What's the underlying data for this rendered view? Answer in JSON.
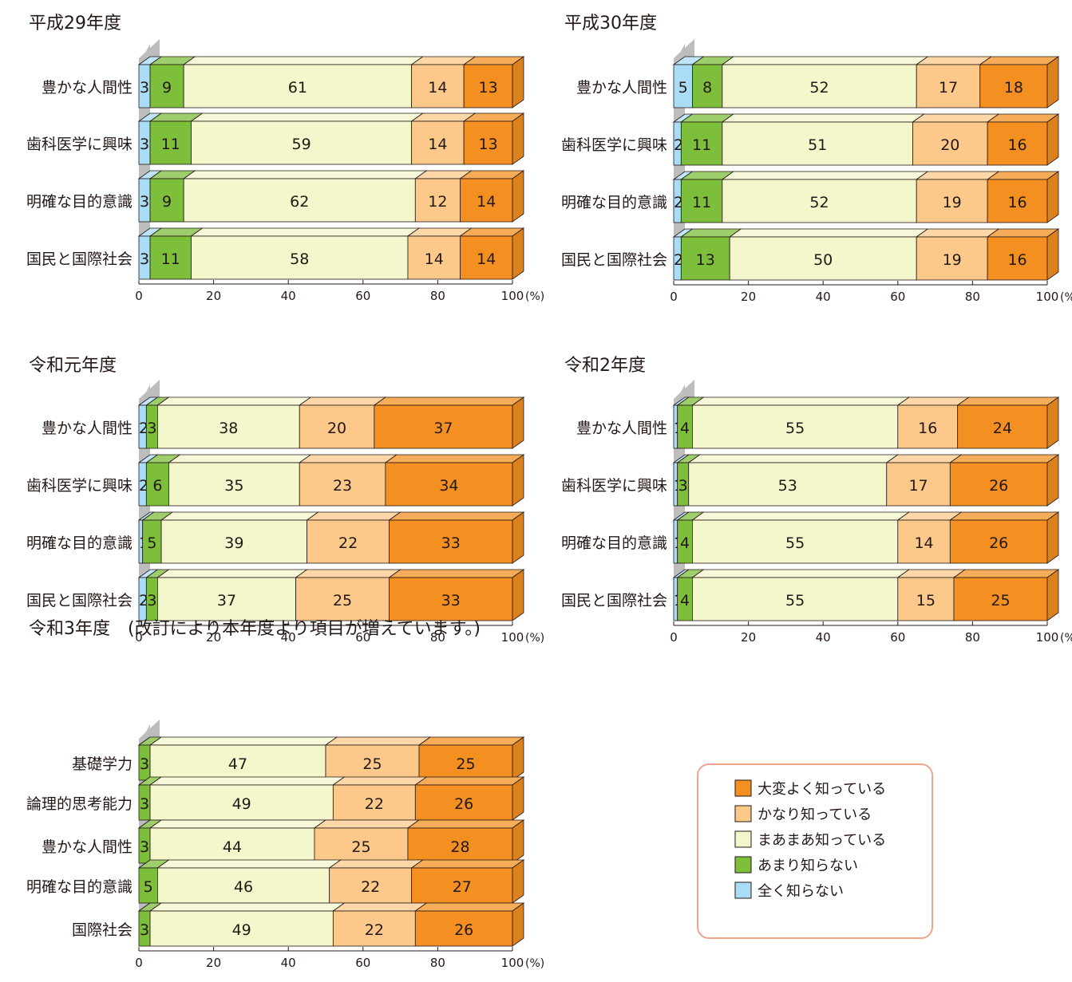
{
  "chart_data": [
    {
      "type": "bar",
      "title": "平成29年度",
      "categories": [
        "豊かな人間性",
        "歯科医学に興味",
        "明確な目的意識",
        "国民と国際社会"
      ],
      "series": [
        {
          "name": "全く知らない",
          "values": [
            3,
            3,
            3,
            3
          ]
        },
        {
          "name": "あまり知らない",
          "values": [
            9,
            11,
            9,
            11
          ]
        },
        {
          "name": "まあまあ知っている",
          "values": [
            61,
            59,
            62,
            58
          ]
        },
        {
          "name": "かなり知っている",
          "values": [
            14,
            14,
            12,
            14
          ]
        },
        {
          "name": "大変よく知っている",
          "values": [
            13,
            13,
            14,
            14
          ]
        }
      ],
      "x_ticks": [
        "0",
        "20",
        "40",
        "60",
        "80",
        "100"
      ],
      "unit": "(%)",
      "xlim": [
        0,
        100
      ]
    },
    {
      "type": "bar",
      "title": "平成30年度",
      "categories": [
        "豊かな人間性",
        "歯科医学に興味",
        "明確な目的意識",
        "国民と国際社会"
      ],
      "series": [
        {
          "name": "全く知らない",
          "values": [
            5,
            2,
            2,
            2
          ]
        },
        {
          "name": "あまり知らない",
          "values": [
            8,
            11,
            11,
            13
          ]
        },
        {
          "name": "まあまあ知っている",
          "values": [
            52,
            51,
            52,
            50
          ]
        },
        {
          "name": "かなり知っている",
          "values": [
            17,
            20,
            19,
            19
          ]
        },
        {
          "name": "大変よく知っている",
          "values": [
            18,
            16,
            16,
            16
          ]
        }
      ],
      "x_ticks": [
        "0",
        "20",
        "40",
        "60",
        "80",
        "100"
      ],
      "unit": "(%)",
      "xlim": [
        0,
        100
      ]
    },
    {
      "type": "bar",
      "title": "令和元年度",
      "categories": [
        "豊かな人間性",
        "歯科医学に興味",
        "明確な目的意識",
        "国民と国際社会"
      ],
      "series": [
        {
          "name": "全く知らない",
          "values": [
            2,
            2,
            1,
            2
          ]
        },
        {
          "name": "あまり知らない",
          "values": [
            3,
            6,
            5,
            3
          ]
        },
        {
          "name": "まあまあ知っている",
          "values": [
            38,
            35,
            39,
            37
          ]
        },
        {
          "name": "かなり知っている",
          "values": [
            20,
            23,
            22,
            25
          ]
        },
        {
          "name": "大変よく知っている",
          "values": [
            37,
            34,
            33,
            33
          ]
        }
      ],
      "x_ticks": [
        "0",
        "20",
        "40",
        "60",
        "80",
        "100"
      ],
      "unit": "(%)",
      "xlim": [
        0,
        100
      ]
    },
    {
      "type": "bar",
      "title": "令和2年度",
      "categories": [
        "豊かな人間性",
        "歯科医学に興味",
        "明確な目的意識",
        "国民と国際社会"
      ],
      "series": [
        {
          "name": "全く知らない",
          "values": [
            1,
            1,
            1,
            1
          ]
        },
        {
          "name": "あまり知らない",
          "values": [
            4,
            3,
            4,
            4
          ]
        },
        {
          "name": "まあまあ知っている",
          "values": [
            55,
            53,
            55,
            55
          ]
        },
        {
          "name": "かなり知っている",
          "values": [
            16,
            17,
            14,
            15
          ]
        },
        {
          "name": "大変よく知っている",
          "values": [
            24,
            26,
            26,
            25
          ]
        }
      ],
      "x_ticks": [
        "0",
        "20",
        "40",
        "60",
        "80",
        "100"
      ],
      "unit": "(%)",
      "xlim": [
        0,
        100
      ]
    },
    {
      "type": "bar",
      "title": "令和3年度　(改訂により本年度より項目が増えています。)",
      "categories": [
        "基礎学力",
        "論理的思考能力",
        "豊かな人間性",
        "明確な目的意識",
        "国際社会"
      ],
      "series": [
        {
          "name": "全く知らない",
          "values": [
            0,
            0,
            0,
            0,
            0
          ]
        },
        {
          "name": "あまり知らない",
          "values": [
            3,
            3,
            3,
            5,
            3
          ]
        },
        {
          "name": "まあまあ知っている",
          "values": [
            47,
            49,
            44,
            46,
            49
          ]
        },
        {
          "name": "かなり知っている",
          "values": [
            25,
            22,
            25,
            22,
            22
          ]
        },
        {
          "name": "大変よく知っている",
          "values": [
            25,
            26,
            28,
            27,
            26
          ]
        }
      ],
      "x_ticks": [
        "0",
        "20",
        "40",
        "60",
        "80",
        "100"
      ],
      "unit": "(%)",
      "xlim": [
        0,
        100
      ]
    }
  ],
  "legend": {
    "placement": "bottom-right",
    "items": [
      {
        "label": "大変よく知っている",
        "color": "#F39021"
      },
      {
        "label": "かなり知っている",
        "color": "#FCC98A"
      },
      {
        "label": "まあまあ知っている",
        "color": "#F4F6CC"
      },
      {
        "label": "あまり知らない",
        "color": "#7DBE3B"
      },
      {
        "label": "全く知らない",
        "color": "#A9DDF5"
      }
    ]
  },
  "colors": {
    "series": [
      "#A9DDF5",
      "#7DBE3B",
      "#F4F6CC",
      "#FCC98A",
      "#F39021"
    ],
    "legend_border": "#EFA58C",
    "depth_wall": "#BDBDBD"
  }
}
